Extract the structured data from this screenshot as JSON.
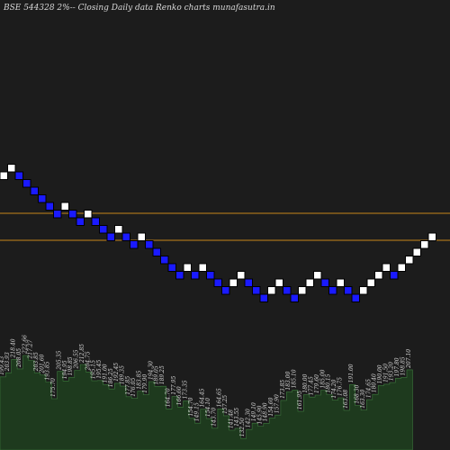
{
  "header": {
    "title": "BSE 544328  2%-- Closing Daily data Renko  charts munafasutra.in"
  },
  "colors": {
    "background": "#1c1c1c",
    "up_brick": "#ffffff",
    "down_brick": "#1a1aff",
    "brick_outline": "#000000",
    "reference_line": "#c8861a",
    "volume_fill": "#1e3a1e",
    "volume_edge": "#3c7a3c"
  },
  "chart_data": [
    {
      "type": "renko",
      "brick_size_pct": 2,
      "direction": [
        "up",
        "up",
        "down",
        "down",
        "down",
        "down",
        "down",
        "down",
        "up",
        "down",
        "down",
        "up",
        "down",
        "down",
        "down",
        "up",
        "down",
        "down",
        "up",
        "down",
        "down",
        "down",
        "down",
        "down",
        "up",
        "down",
        "up",
        "down",
        "down",
        "down",
        "up",
        "up",
        "down",
        "down",
        "down",
        "up",
        "up",
        "down",
        "down",
        "up",
        "up",
        "up",
        "down",
        "down",
        "up",
        "down",
        "down",
        "up",
        "up",
        "up",
        "up",
        "down",
        "up",
        "up",
        "up",
        "up",
        "up"
      ],
      "reference_lines": 2
    },
    {
      "type": "bar",
      "labels": [
        "199.43",
        "203.93",
        "218.40",
        "208.05",
        "222.66",
        "217.27",
        "203.85",
        "201.60",
        "193.85",
        "175.70",
        "205.35",
        "194.95",
        "198.85",
        "206.55",
        "212.85",
        "204.75",
        "195.15",
        "195.45",
        "191.00",
        "186.25",
        "192.45",
        "189.35",
        "177.85",
        "176.05",
        "183.85",
        "179.90",
        "194.30",
        "189.05",
        "189.25",
        "164.70",
        "177.95",
        "166.60",
        "173.35",
        "154.70",
        "149.15",
        "164.45",
        "154.10",
        "143.70",
        "164.65",
        "157.25",
        "141.48",
        "143.55",
        "132.50",
        "142.30",
        "149.10",
        "145.90",
        "148.90",
        "154.60",
        "157.90",
        "173.85",
        "183.00",
        "185.10",
        "161.95",
        "180.00",
        "177.45",
        "179.60",
        "185.00",
        "180.15",
        "174.20",
        "176.75",
        "163.08",
        "191.00",
        "168.30",
        "163.30",
        "174.65",
        "180.40",
        "190.00",
        "191.50",
        "193.20",
        "197.80",
        "198.85",
        "207.10"
      ],
      "values": [
        199.43,
        203.93,
        218.4,
        208.05,
        222.66,
        217.27,
        203.85,
        201.6,
        193.85,
        175.7,
        205.35,
        194.95,
        198.85,
        206.55,
        212.85,
        204.75,
        195.15,
        195.45,
        191.0,
        186.25,
        192.45,
        189.35,
        177.85,
        176.05,
        183.85,
        179.9,
        194.3,
        189.05,
        189.25,
        164.7,
        177.95,
        166.6,
        173.35,
        154.7,
        149.15,
        164.45,
        154.1,
        143.7,
        164.65,
        157.25,
        141.48,
        143.55,
        132.5,
        142.3,
        149.1,
        145.9,
        148.9,
        154.6,
        157.9,
        173.85,
        183.0,
        185.1,
        161.95,
        180.0,
        177.45,
        179.6,
        185.0,
        180.15,
        174.2,
        176.75,
        163.08,
        191.0,
        168.3,
        163.3,
        174.65,
        180.4,
        190.0,
        191.5,
        193.2,
        197.8,
        198.85,
        207.1
      ]
    }
  ]
}
